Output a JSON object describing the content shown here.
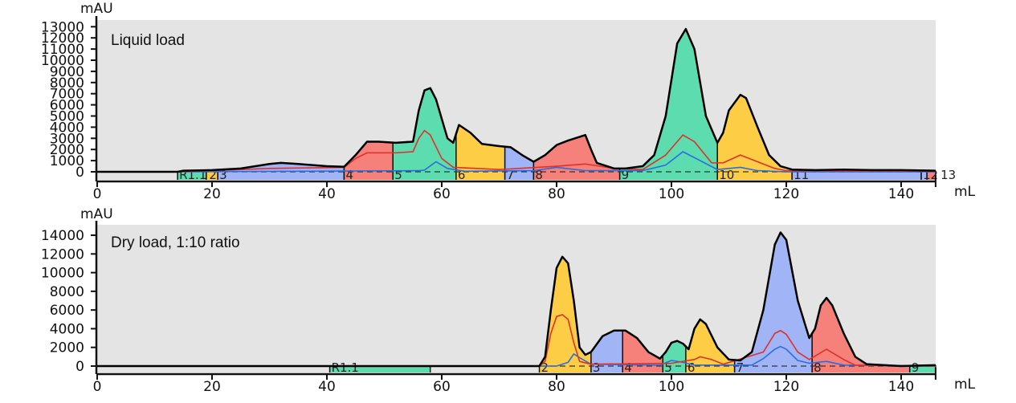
{
  "chart_data": [
    {
      "type": "area",
      "title": "Liquid load",
      "ylabel": "mAU",
      "xlabel": "mL",
      "xlim": [
        0,
        146
      ],
      "ylim": [
        0,
        13500
      ],
      "xticks": [
        0,
        20,
        40,
        60,
        80,
        100,
        120,
        140
      ],
      "yticks": [
        0,
        1000,
        2000,
        3000,
        4000,
        5000,
        6000,
        7000,
        8000,
        9000,
        10000,
        11000,
        12000,
        13000
      ],
      "colors": {
        "background": "#e4e4e4",
        "green": "#5ddcb0",
        "yellow": "#fccd45",
        "blue": "#a0b4f6",
        "red": "#f6817a",
        "trace": "#000000",
        "trace2": "#e0302a",
        "trace3": "#2a6de0"
      },
      "series": [
        {
          "color": "trace",
          "points": [
            [
              0,
              0
            ],
            [
              14,
              0
            ],
            [
              15,
              100
            ],
            [
              20,
              150
            ],
            [
              25,
              300
            ],
            [
              30,
              700
            ],
            [
              32,
              800
            ],
            [
              35,
              700
            ],
            [
              40,
              500
            ],
            [
              43,
              450
            ],
            [
              45,
              1500
            ],
            [
              47,
              2700
            ],
            [
              49,
              2700
            ],
            [
              52,
              2600
            ],
            [
              55,
              2700
            ],
            [
              56,
              5500
            ],
            [
              57,
              7300
            ],
            [
              58,
              7500
            ],
            [
              59,
              6500
            ],
            [
              61,
              3000
            ],
            [
              62,
              2600
            ],
            [
              63,
              4200
            ],
            [
              65,
              3500
            ],
            [
              67,
              2500
            ],
            [
              70,
              2300
            ],
            [
              72,
              2200
            ],
            [
              74,
              1500
            ],
            [
              76,
              900
            ],
            [
              78,
              1500
            ],
            [
              80,
              2400
            ],
            [
              82,
              2800
            ],
            [
              85,
              3300
            ],
            [
              86,
              2000
            ],
            [
              87,
              800
            ],
            [
              90,
              300
            ],
            [
              92,
              300
            ],
            [
              95,
              500
            ],
            [
              97,
              1500
            ],
            [
              99,
              5000
            ],
            [
              101,
              11500
            ],
            [
              102.5,
              12800
            ],
            [
              104,
              11000
            ],
            [
              106,
              5000
            ],
            [
              108,
              2600
            ],
            [
              109,
              3500
            ],
            [
              110,
              5500
            ],
            [
              112,
              6900
            ],
            [
              113,
              6600
            ],
            [
              115,
              4000
            ],
            [
              117,
              1500
            ],
            [
              119,
              500
            ],
            [
              121,
              200
            ],
            [
              125,
              150
            ],
            [
              130,
              200
            ],
            [
              135,
              150
            ],
            [
              140,
              150
            ],
            [
              146,
              100
            ]
          ]
        },
        {
          "color": "trace2",
          "points": [
            [
              14,
              0
            ],
            [
              30,
              300
            ],
            [
              43,
              400
            ],
            [
              45,
              1200
            ],
            [
              47,
              1700
            ],
            [
              52,
              1700
            ],
            [
              55,
              1800
            ],
            [
              56,
              3000
            ],
            [
              57,
              3700
            ],
            [
              58,
              3300
            ],
            [
              60,
              1200
            ],
            [
              62,
              400
            ],
            [
              70,
              200
            ],
            [
              80,
              500
            ],
            [
              85,
              700
            ],
            [
              90,
              300
            ],
            [
              95,
              200
            ],
            [
              99,
              1500
            ],
            [
              102,
              3300
            ],
            [
              104,
              2700
            ],
            [
              107,
              800
            ],
            [
              109,
              800
            ],
            [
              112,
              1500
            ],
            [
              115,
              900
            ],
            [
              118,
              300
            ],
            [
              120,
              100
            ],
            [
              146,
              50
            ]
          ]
        },
        {
          "color": "trace3",
          "points": [
            [
              14,
              0
            ],
            [
              56,
              100
            ],
            [
              57,
              150
            ],
            [
              59,
              900
            ],
            [
              61,
              300
            ],
            [
              64,
              50
            ],
            [
              76,
              100
            ],
            [
              80,
              400
            ],
            [
              85,
              100
            ],
            [
              95,
              100
            ],
            [
              99,
              600
            ],
            [
              102,
              1800
            ],
            [
              105,
              1000
            ],
            [
              108,
              200
            ],
            [
              112,
              400
            ],
            [
              115,
              100
            ],
            [
              120,
              0
            ],
            [
              146,
              0
            ]
          ]
        }
      ],
      "fractions": [
        {
          "label": "R1.1",
          "start": 14,
          "end": 19,
          "color": "green"
        },
        {
          "label": "2",
          "start": 19,
          "end": 21,
          "color": "yellow"
        },
        {
          "label": "3",
          "start": 21,
          "end": 43,
          "color": "blue"
        },
        {
          "label": "4",
          "start": 43,
          "end": 51.5,
          "color": "red"
        },
        {
          "label": "5",
          "start": 51.5,
          "end": 62.5,
          "color": "green"
        },
        {
          "label": "6",
          "start": 62.5,
          "end": 71,
          "color": "yellow"
        },
        {
          "label": "7",
          "start": 71,
          "end": 76,
          "color": "blue"
        },
        {
          "label": "8",
          "start": 76,
          "end": 91,
          "color": "red"
        },
        {
          "label": "9",
          "start": 91,
          "end": 108,
          "color": "green"
        },
        {
          "label": "10",
          "start": 108,
          "end": 121,
          "color": "yellow"
        },
        {
          "label": "11",
          "start": 121,
          "end": 143.5,
          "color": "blue"
        },
        {
          "label": "12",
          "start": 143.5,
          "end": 144.5,
          "color": "blue"
        },
        {
          "label": "13",
          "start": 144.5,
          "end": 146,
          "color": "red"
        }
      ]
    },
    {
      "type": "area",
      "title": "Dry load, 1:10 ratio",
      "ylabel": "mAU",
      "xlabel": "mL",
      "xlim": [
        0,
        146
      ],
      "ylim": [
        0,
        15000
      ],
      "xticks": [
        0,
        20,
        40,
        60,
        80,
        100,
        120,
        140
      ],
      "yticks": [
        0,
        2000,
        4000,
        6000,
        8000,
        10000,
        12000,
        14000
      ],
      "colors": {
        "background": "#e4e4e4",
        "green": "#5ddcb0",
        "yellow": "#fccd45",
        "blue": "#a0b4f6",
        "red": "#f6817a",
        "trace": "#000000",
        "trace2": "#e0302a",
        "trace3": "#2a6de0"
      },
      "series": [
        {
          "color": "trace",
          "points": [
            [
              0,
              0
            ],
            [
              77,
              0
            ],
            [
              78,
              1000
            ],
            [
              79,
              6000
            ],
            [
              80,
              10500
            ],
            [
              81,
              11700
            ],
            [
              82,
              11000
            ],
            [
              83,
              7000
            ],
            [
              84,
              2000
            ],
            [
              85,
              1200
            ],
            [
              86,
              1500
            ],
            [
              88,
              3200
            ],
            [
              90,
              3800
            ],
            [
              92,
              3800
            ],
            [
              94,
              3000
            ],
            [
              96,
              1500
            ],
            [
              98,
              800
            ],
            [
              99,
              1500
            ],
            [
              100,
              2500
            ],
            [
              101,
              2700
            ],
            [
              102,
              2400
            ],
            [
              103,
              1800
            ],
            [
              104,
              4000
            ],
            [
              105,
              5000
            ],
            [
              106,
              4500
            ],
            [
              108,
              2000
            ],
            [
              110,
              700
            ],
            [
              112,
              600
            ],
            [
              114,
              1500
            ],
            [
              116,
              6000
            ],
            [
              118,
              13000
            ],
            [
              119,
              14300
            ],
            [
              120,
              13500
            ],
            [
              122,
              7000
            ],
            [
              124,
              3000
            ],
            [
              125,
              4000
            ],
            [
              126,
              6500
            ],
            [
              127,
              7300
            ],
            [
              128,
              6500
            ],
            [
              130,
              3500
            ],
            [
              132,
              1000
            ],
            [
              134,
              200
            ],
            [
              140,
              0
            ],
            [
              146,
              100
            ]
          ]
        },
        {
          "color": "trace2",
          "points": [
            [
              0,
              0
            ],
            [
              77,
              0
            ],
            [
              78,
              500
            ],
            [
              79,
              3500
            ],
            [
              80,
              5300
            ],
            [
              81,
              5500
            ],
            [
              82,
              5000
            ],
            [
              83,
              2500
            ],
            [
              84,
              500
            ],
            [
              86,
              200
            ],
            [
              100,
              300
            ],
            [
              104,
              700
            ],
            [
              105,
              1000
            ],
            [
              107,
              700
            ],
            [
              109,
              200
            ],
            [
              116,
              1500
            ],
            [
              118,
              3500
            ],
            [
              119,
              3800
            ],
            [
              120,
              3400
            ],
            [
              122,
              1500
            ],
            [
              124,
              700
            ],
            [
              127,
              1800
            ],
            [
              130,
              700
            ],
            [
              132,
              100
            ],
            [
              146,
              0
            ]
          ]
        },
        {
          "color": "trace3",
          "points": [
            [
              0,
              0
            ],
            [
              80,
              0
            ],
            [
              82,
              400
            ],
            [
              83,
              1300
            ],
            [
              84,
              900
            ],
            [
              86,
              200
            ],
            [
              98,
              100
            ],
            [
              100,
              600
            ],
            [
              102,
              400
            ],
            [
              104,
              100
            ],
            [
              114,
              100
            ],
            [
              116,
              800
            ],
            [
              118,
              1800
            ],
            [
              119,
              2100
            ],
            [
              120,
              1800
            ],
            [
              122,
              600
            ],
            [
              124,
              300
            ],
            [
              127,
              500
            ],
            [
              130,
              100
            ],
            [
              146,
              0
            ]
          ]
        }
      ],
      "fractions": [
        {
          "label": "R1.1",
          "start": 40.5,
          "end": 58,
          "color": "green"
        },
        {
          "label": "2",
          "start": 77,
          "end": 86,
          "color": "yellow"
        },
        {
          "label": "3",
          "start": 86,
          "end": 91.5,
          "color": "blue"
        },
        {
          "label": "4",
          "start": 91.5,
          "end": 98.5,
          "color": "red"
        },
        {
          "label": "5",
          "start": 98.5,
          "end": 102.5,
          "color": "green"
        },
        {
          "label": "6",
          "start": 102.5,
          "end": 111,
          "color": "yellow"
        },
        {
          "label": "7",
          "start": 111,
          "end": 124.5,
          "color": "blue"
        },
        {
          "label": "8",
          "start": 124.5,
          "end": 141.5,
          "color": "red"
        },
        {
          "label": "9",
          "start": 141.5,
          "end": 146,
          "color": "green"
        }
      ]
    }
  ]
}
